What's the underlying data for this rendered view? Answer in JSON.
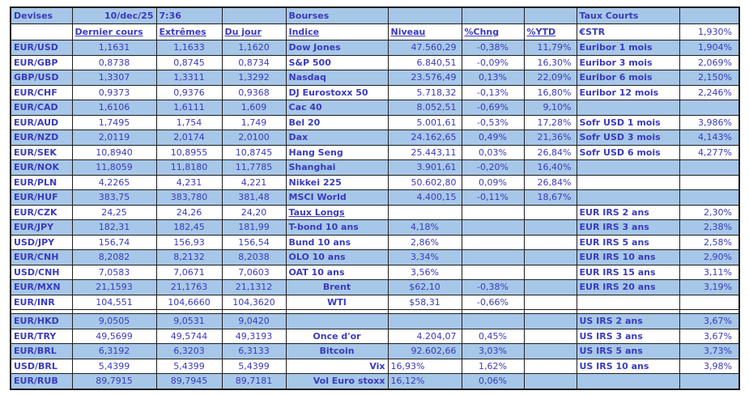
{
  "header": {
    "devises_title": "Devises",
    "date": "10/dec/25",
    "time": "7:36",
    "bourses_title": "Bourses",
    "taux_courts_title": "Taux Courts"
  },
  "colors": {
    "row_fill": "#a7c7e8",
    "text": "#3a3bbd",
    "border": "#1e1e1e"
  },
  "devises": {
    "columns": [
      "Dernier cours",
      "Extrêmes",
      "Du jour"
    ],
    "rows": [
      {
        "pair": "EUR/USD",
        "dernier": "1,1631",
        "extremes": "1,1633",
        "du_jour": "1,1620"
      },
      {
        "pair": "EUR/GBP",
        "dernier": "0,8738",
        "extremes": "0,8745",
        "du_jour": "0,8734"
      },
      {
        "pair": "GBP/USD",
        "dernier": "1,3307",
        "extremes": "1,3311",
        "du_jour": "1,3292"
      },
      {
        "pair": "EUR/CHF",
        "dernier": "0,9373",
        "extremes": "0,9376",
        "du_jour": "0,9368"
      },
      {
        "pair": "EUR/CAD",
        "dernier": "1,6106",
        "extremes": "1,6111",
        "du_jour": "1,609"
      },
      {
        "pair": "EUR/AUD",
        "dernier": "1,7495",
        "extremes": "1,754",
        "du_jour": "1,749"
      },
      {
        "pair": "EUR/NZD",
        "dernier": "2,0119",
        "extremes": "2,0174",
        "du_jour": "2,0100"
      },
      {
        "pair": "EUR/SEK",
        "dernier": "10,8940",
        "extremes": "10,8955",
        "du_jour": "10,8745"
      },
      {
        "pair": "EUR/NOK",
        "dernier": "11,8059",
        "extremes": "11,8180",
        "du_jour": "11,7785"
      },
      {
        "pair": "EUR/PLN",
        "dernier": "4,2265",
        "extremes": "4,231",
        "du_jour": "4,221"
      },
      {
        "pair": "EUR/HUF",
        "dernier": "383,75",
        "extremes": "383,780",
        "du_jour": "381,48"
      },
      {
        "pair": "EUR/CZK",
        "dernier": "24,25",
        "extremes": "24,26",
        "du_jour": "24,20"
      },
      {
        "pair": "EUR/JPY",
        "dernier": "182,31",
        "extremes": "182,45",
        "du_jour": "181,99"
      },
      {
        "pair": "USD/JPY",
        "dernier": "156,74",
        "extremes": "156,93",
        "du_jour": "156,54"
      },
      {
        "pair": "EUR/CNH",
        "dernier": "8,2082",
        "extremes": "8,2132",
        "du_jour": "8,2038"
      },
      {
        "pair": "USD/CNH",
        "dernier": "7,0583",
        "extremes": "7,0671",
        "du_jour": "7,0603"
      },
      {
        "pair": "EUR/MXN",
        "dernier": "21,1593",
        "extremes": "21,1763",
        "du_jour": "21,1312"
      },
      {
        "pair": "EUR/INR",
        "dernier": "104,551",
        "extremes": "104,6660",
        "du_jour": "104,3620"
      },
      {
        "pair": "EUR/HKD",
        "dernier": "9,0505",
        "extremes": "9,0531",
        "du_jour": "9,0420"
      },
      {
        "pair": "EUR/TRY",
        "dernier": "49,5699",
        "extremes": "49,5744",
        "du_jour": "49,3193"
      },
      {
        "pair": "EUR/BRL",
        "dernier": "6,3192",
        "extremes": "6,3203",
        "du_jour": "6,3133"
      },
      {
        "pair": "USD/BRL",
        "dernier": "5,4399",
        "extremes": "5,4399",
        "du_jour": "5,4399"
      },
      {
        "pair": "EUR/RUB",
        "dernier": "89,7915",
        "extremes": "89,7945",
        "du_jour": "89,7181"
      }
    ]
  },
  "bourses": {
    "columns": [
      "Indice",
      "Niveau",
      "%Chng",
      "%YTD"
    ],
    "rows": [
      {
        "indice": "Dow Jones",
        "niveau": "47.560,29",
        "chng": "-0,38%",
        "ytd": "11,79%"
      },
      {
        "indice": "S&P 500",
        "niveau": "6.840,51",
        "chng": "-0,09%",
        "ytd": "16,30%"
      },
      {
        "indice": "Nasdaq",
        "niveau": "23.576,49",
        "chng": "0,13%",
        "ytd": "22,09%"
      },
      {
        "indice": "DJ Eurostoxx 50",
        "niveau": "5.718,32",
        "chng": "-0,13%",
        "ytd": "16,80%"
      },
      {
        "indice": "Cac 40",
        "niveau": "8.052,51",
        "chng": "-0,69%",
        "ytd": "9,10%"
      },
      {
        "indice": "Bel 20",
        "niveau": "5.001,61",
        "chng": "-0,53%",
        "ytd": "17,28%"
      },
      {
        "indice": "Dax",
        "niveau": "24.162,65",
        "chng": "0,49%",
        "ytd": "21,36%"
      },
      {
        "indice": "Hang Seng",
        "niveau": "25.443,11",
        "chng": "0,03%",
        "ytd": "26,84%"
      },
      {
        "indice": "Shanghai",
        "niveau": "3.901,61",
        "chng": "-0,20%",
        "ytd": "16,40%"
      },
      {
        "indice": "Nikkei 225",
        "niveau": "50.602,80",
        "chng": "0,09%",
        "ytd": "26,84%"
      },
      {
        "indice": "MSCI World",
        "niveau": "4.400,15",
        "chng": "-0,11%",
        "ytd": "18,67%"
      }
    ]
  },
  "taux_longs": {
    "title": "Taux Longs",
    "rows": [
      {
        "label": "T-bond 10 ans",
        "value": "4,18%"
      },
      {
        "label": "Bund 10 ans",
        "value": "2,86%"
      },
      {
        "label": "OLO 10 ans",
        "value": "3,34%"
      },
      {
        "label": "OAT 10 ans",
        "value": "3,56%"
      }
    ]
  },
  "autres": {
    "rows": [
      {
        "label": "Brent",
        "niveau": "$62,10",
        "chng": "-0,38%"
      },
      {
        "label": "WTI",
        "niveau": "$58,31",
        "chng": "-0,66%"
      },
      {
        "label": "Once d'or",
        "niveau": "4.204,07",
        "chng": "0,45%"
      },
      {
        "label": "Bitcoin",
        "niveau": "92.602,66",
        "chng": "3,03%"
      },
      {
        "label": "Vix",
        "niveau": "16,93%",
        "chng": "1,62%"
      },
      {
        "label": "Vol Euro stoxx",
        "niveau": "16,12%",
        "chng": "0,06%"
      }
    ]
  },
  "taux_courts": {
    "rows": [
      {
        "label": "€STR",
        "value": "1,930%"
      },
      {
        "label": "Euribor 1 mois",
        "value": "1,904%"
      },
      {
        "label": "Euribor 3 mois",
        "value": "2,069%"
      },
      {
        "label": "Euribor 6 mois",
        "value": "2,150%"
      },
      {
        "label": "Euribor 12 mois",
        "value": "2,246%"
      },
      {
        "label": "Sofr USD 1 mois",
        "value": "3,986%"
      },
      {
        "label": "Sofr USD 3 mois",
        "value": "4,143%"
      },
      {
        "label": "Sofr USD 6 mois",
        "value": "4,277%"
      },
      {
        "label": "EUR IRS 2 ans",
        "value": "2,30%"
      },
      {
        "label": "EUR IRS 3 ans",
        "value": "2,38%"
      },
      {
        "label": "EUR IRS 5 ans",
        "value": "2,58%"
      },
      {
        "label": "EUR IRS 10 ans",
        "value": "2,90%"
      },
      {
        "label": "EUR IRS 15 ans",
        "value": "3,11%"
      },
      {
        "label": "EUR IRS 20 ans",
        "value": "3,19%"
      },
      {
        "label": "US IRS 2 ans",
        "value": "3,67%"
      },
      {
        "label": "US IRS 3 ans",
        "value": "3,67%"
      },
      {
        "label": "US IRS 5 ans",
        "value": "3,73%"
      },
      {
        "label": "US IRS 10 ans",
        "value": "3,98%"
      }
    ]
  }
}
